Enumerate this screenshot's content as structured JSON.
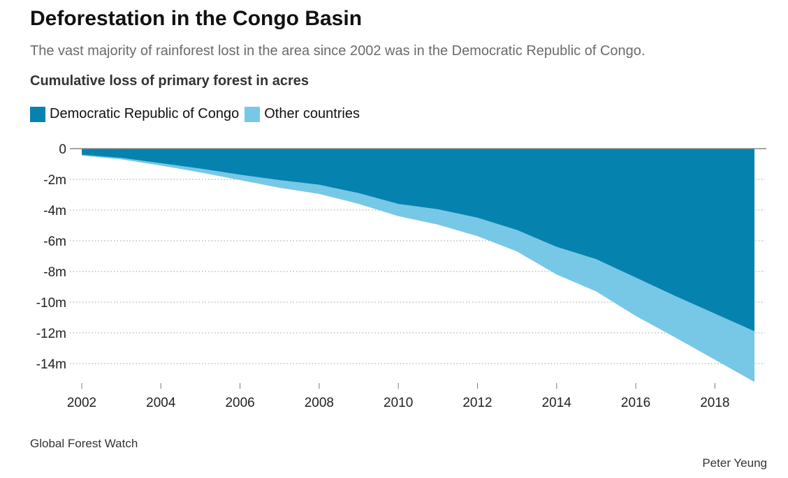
{
  "header": {
    "title": "Deforestation in the Congo Basin",
    "subtitle": "The vast majority of rainforest lost in the area since 2002 was in the Democratic Republic of Congo.",
    "axis_title": "Cumulative loss of primary forest in acres"
  },
  "footer": {
    "source": "Global Forest Watch",
    "credit": "Peter Yeung"
  },
  "chart_data": {
    "type": "area",
    "stacked": true,
    "title": "Deforestation in the Congo Basin",
    "subtitle": "The vast majority of rainforest lost in the area since 2002 was in the Democratic Republic of Congo.",
    "ylabel": "Cumulative loss of primary forest in acres",
    "xlabel": "",
    "x": [
      2002,
      2003,
      2004,
      2005,
      2006,
      2007,
      2008,
      2009,
      2010,
      2011,
      2012,
      2013,
      2014,
      2015,
      2016,
      2017,
      2018,
      2019
    ],
    "series": [
      {
        "name": "Democratic Republic of Congo",
        "color": "#0583ae",
        "values": [
          -0.4,
          -0.6,
          -0.95,
          -1.3,
          -1.7,
          -2.05,
          -2.35,
          -2.9,
          -3.6,
          -3.95,
          -4.5,
          -5.3,
          -6.4,
          -7.2,
          -8.4,
          -9.6,
          -10.75,
          -11.9
        ]
      },
      {
        "name": "Other countries",
        "color": "#76c8e6",
        "values": [
          -0.05,
          -0.1,
          -0.15,
          -0.25,
          -0.35,
          -0.5,
          -0.6,
          -0.7,
          -0.8,
          -1.0,
          -1.2,
          -1.4,
          -1.8,
          -2.1,
          -2.5,
          -2.7,
          -3.0,
          -3.3
        ]
      }
    ],
    "ylim": [
      -15,
      0
    ],
    "yticks": [
      0,
      -2,
      -4,
      -6,
      -8,
      -10,
      -12,
      -14
    ],
    "ytick_labels": [
      "0",
      "-2m",
      "-4m",
      "-6m",
      "-8m",
      "-10m",
      "-12m",
      "-14m"
    ],
    "xticks": [
      2002,
      2004,
      2006,
      2008,
      2010,
      2012,
      2014,
      2016,
      2018
    ],
    "xtick_labels": [
      "2002",
      "2004",
      "2006",
      "2008",
      "2010",
      "2012",
      "2014",
      "2016",
      "2018"
    ],
    "grid": true,
    "legend_position": "top-left"
  }
}
